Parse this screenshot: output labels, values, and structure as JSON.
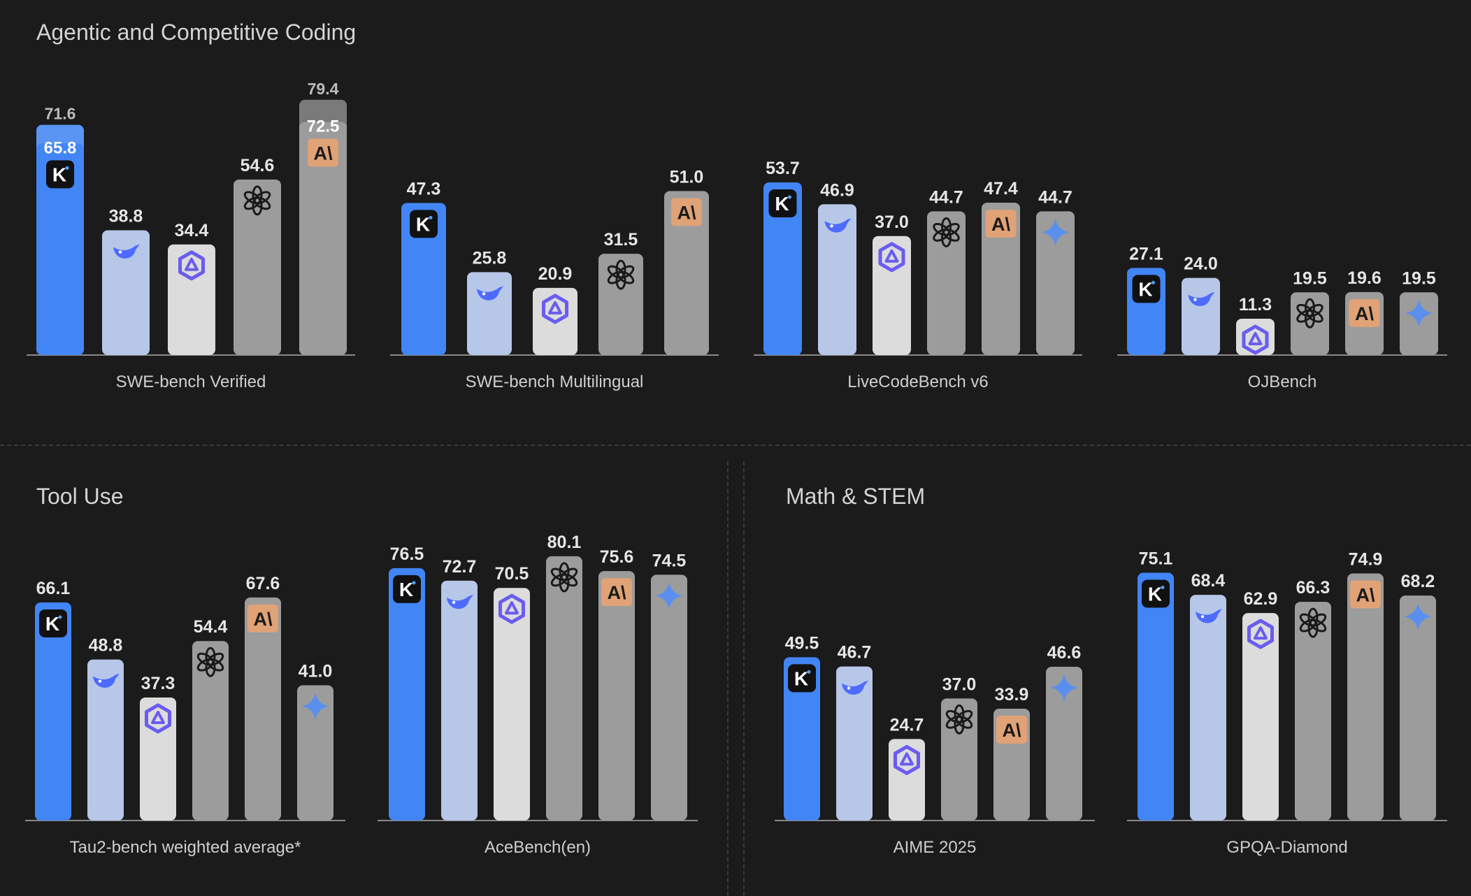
{
  "sections": {
    "coding": {
      "title": "Agentic and Competitive Coding"
    },
    "tool": {
      "title": "Tool Use"
    },
    "math": {
      "title": "Math & STEM"
    }
  },
  "colors": {
    "kimi": "#4285f4",
    "deepseek": "#b7c7e8",
    "qwen": "#dcdcdc",
    "openai": "#9c9c9c",
    "claude": "#9c9c9c",
    "gemini": "#9c9c9c",
    "kimi_stack": "#5b95f3",
    "claude_stack": "#7a7a7a"
  },
  "model_icons": {
    "kimi": "kimi-logo-icon",
    "deepseek": "deepseek-whale-icon",
    "qwen": "qwen-logo-icon",
    "openai": "openai-logo-icon",
    "claude": "anthropic-logo-icon",
    "gemini": "gemini-sparkle-icon"
  },
  "chart_data": [
    {
      "type": "bar",
      "section": "coding",
      "title": "SWE-bench Verified",
      "models": [
        "kimi",
        "deepseek",
        "qwen",
        "openai",
        "claude"
      ],
      "values": [
        65.8,
        38.8,
        34.4,
        54.6,
        72.5
      ],
      "stacked_top": {
        "kimi": 71.6,
        "claude": 79.4
      }
    },
    {
      "type": "bar",
      "section": "coding",
      "title": "SWE-bench Multilingual",
      "models": [
        "kimi",
        "deepseek",
        "qwen",
        "openai",
        "claude"
      ],
      "values": [
        47.3,
        25.8,
        20.9,
        31.5,
        51.0
      ]
    },
    {
      "type": "bar",
      "section": "coding",
      "title": "LiveCodeBench v6",
      "models": [
        "kimi",
        "deepseek",
        "qwen",
        "openai",
        "claude",
        "gemini"
      ],
      "values": [
        53.7,
        46.9,
        37.0,
        44.7,
        47.4,
        44.7
      ]
    },
    {
      "type": "bar",
      "section": "coding",
      "title": "OJBench",
      "models": [
        "kimi",
        "deepseek",
        "qwen",
        "openai",
        "claude",
        "gemini"
      ],
      "values": [
        27.1,
        24.0,
        11.3,
        19.5,
        19.6,
        19.5
      ]
    },
    {
      "type": "bar",
      "section": "tool",
      "title": "Tau2-bench weighted average*",
      "models": [
        "kimi",
        "deepseek",
        "qwen",
        "openai",
        "claude",
        "gemini"
      ],
      "values": [
        66.1,
        48.8,
        37.3,
        54.4,
        67.6,
        41.0
      ]
    },
    {
      "type": "bar",
      "section": "tool",
      "title": "AceBench(en)",
      "models": [
        "kimi",
        "deepseek",
        "qwen",
        "openai",
        "claude",
        "gemini"
      ],
      "values": [
        76.5,
        72.7,
        70.5,
        80.1,
        75.6,
        74.5
      ]
    },
    {
      "type": "bar",
      "section": "math",
      "title": "AIME 2025",
      "models": [
        "kimi",
        "deepseek",
        "qwen",
        "openai",
        "claude",
        "gemini"
      ],
      "values": [
        49.5,
        46.7,
        24.7,
        37.0,
        33.9,
        46.6
      ]
    },
    {
      "type": "bar",
      "section": "math",
      "title": "GPQA-Diamond",
      "models": [
        "kimi",
        "deepseek",
        "qwen",
        "openai",
        "claude",
        "gemini"
      ],
      "values": [
        75.1,
        68.4,
        62.9,
        66.3,
        74.9,
        68.2
      ]
    }
  ]
}
